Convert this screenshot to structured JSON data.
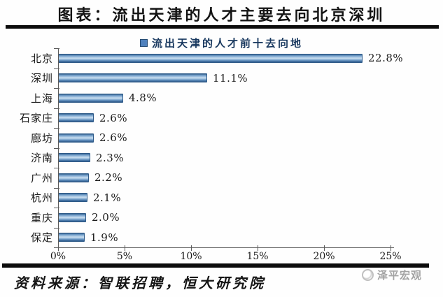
{
  "page": {
    "title": "图表：流出天津的人才主要去向北京深圳",
    "source": "资料来源：智联招聘，恒大研究院",
    "watermark": "泽平宏观"
  },
  "chart_data": {
    "type": "bar",
    "orientation": "horizontal",
    "title": "流出天津的人才前十去向地",
    "legend": "流出天津的人才前十去向地",
    "legend_position": "top-center",
    "categories": [
      "北京",
      "深圳",
      "上海",
      "石家庄",
      "廊坊",
      "济南",
      "广州",
      "杭州",
      "重庆",
      "保定"
    ],
    "values": [
      22.8,
      11.1,
      4.8,
      2.6,
      2.6,
      2.3,
      2.2,
      2.1,
      2.0,
      1.9
    ],
    "value_labels": [
      "22.8%",
      "11.1%",
      "4.8%",
      "2.6%",
      "2.6%",
      "2.3%",
      "2.2%",
      "2.1%",
      "2.0%",
      "1.9%"
    ],
    "xlabel": "",
    "ylabel": "",
    "xlim": [
      0,
      25
    ],
    "x_ticks": [
      "0%",
      "5%",
      "10%",
      "15%",
      "20%",
      "25%"
    ],
    "x_tick_values": [
      0,
      5,
      10,
      15,
      20,
      25
    ],
    "grid": false,
    "bar_color": "#4f81bd",
    "bar_border_color": "#2e5a88",
    "accent_color": "#17375e"
  }
}
